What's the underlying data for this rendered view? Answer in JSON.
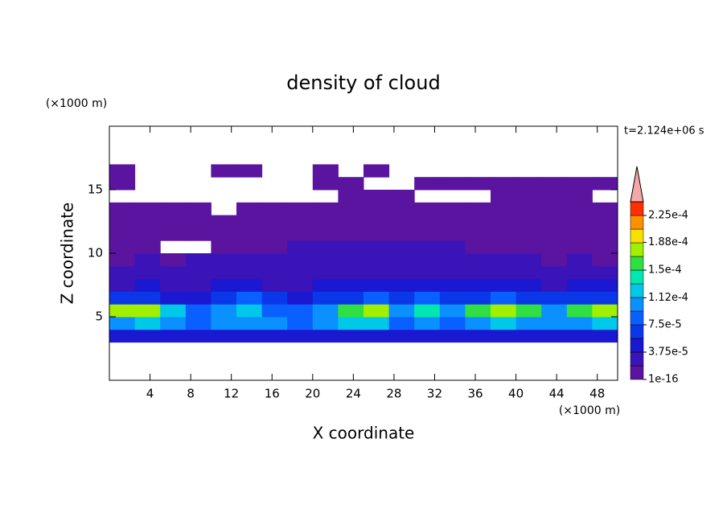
{
  "chart_data": {
    "type": "contour",
    "title": "density of cloud",
    "x_label": "X coordinate",
    "y_label": "Z coordinate",
    "x_unit": "(×1000 m)",
    "y_unit": "(×1000 m)",
    "time_label": "t=2.124e+06 s",
    "xlim": [
      0,
      50
    ],
    "ylim": [
      0,
      20
    ],
    "xticks": [
      4,
      8,
      12,
      16,
      20,
      24,
      28,
      32,
      36,
      40,
      44,
      48
    ],
    "yticks": [
      5,
      10,
      15
    ],
    "levels": [
      1e-16,
      1.875e-05,
      3.75e-05,
      5.625e-05,
      7.5e-05,
      9.375e-05,
      0.0001125,
      0.00013125,
      0.00015,
      0.00016875,
      0.0001875,
      0.00020625,
      0.000225,
      0.00024375
    ],
    "colors": [
      "#5a14a0",
      "#3a14b8",
      "#1a18d0",
      "#0a38e8",
      "#0a60ff",
      "#0a90ff",
      "#00c8e8",
      "#00e8b0",
      "#30e040",
      "#a0f000",
      "#f8e000",
      "#ff9000",
      "#ff3000"
    ],
    "extend_color": "#f4a8a8",
    "colorbar_ticks": [
      {
        "value": 1e-16,
        "label": "1e-16"
      },
      {
        "value": 3.75e-05,
        "label": "3.75e-5"
      },
      {
        "value": 7.5e-05,
        "label": "7.5e-5"
      },
      {
        "value": 0.000112,
        "label": "1.12e-4"
      },
      {
        "value": 0.00015,
        "label": "1.5e-4"
      },
      {
        "value": 0.000188,
        "label": "1.88e-4"
      },
      {
        "value": 0.000225,
        "label": "2.25e-4"
      }
    ],
    "x": [
      1.25,
      3.75,
      6.25,
      8.75,
      11.25,
      13.75,
      16.25,
      18.75,
      21.25,
      23.75,
      26.25,
      28.75,
      31.25,
      33.75,
      36.25,
      38.75,
      41.25,
      43.75,
      46.25,
      48.75
    ],
    "y": [
      3.5,
      4.5,
      5.5,
      6.5,
      7.5,
      8.5,
      9.5,
      10.5,
      11.5,
      12.5,
      13.5,
      14.5,
      15.5,
      16.5
    ],
    "z": [
      [
        4e-05,
        4e-05,
        4e-05,
        4e-05,
        4e-05,
        4e-05,
        4e-05,
        4e-05,
        4e-05,
        4e-05,
        4e-05,
        4e-05,
        4e-05,
        4e-05,
        4e-05,
        4e-05,
        4e-05,
        4e-05,
        4e-05,
        4e-05
      ],
      [
        0.00011,
        0.00012,
        0.0001,
        9e-05,
        0.0001,
        0.00011,
        0.0001,
        9e-05,
        0.0001,
        0.00012,
        0.00012,
        9e-05,
        0.0001,
        9e-05,
        0.00011,
        0.00012,
        0.00011,
        0.0001,
        0.00011,
        0.00012
      ],
      [
        0.00017,
        0.00018,
        0.00013,
        9e-05,
        0.0001,
        0.00012,
        9e-05,
        8e-05,
        0.00011,
        0.00016,
        0.00017,
        0.0001,
        0.00014,
        0.0001,
        0.00015,
        0.00018,
        0.00016,
        0.00011,
        0.00015,
        0.00017
      ],
      [
        6e-05,
        7e-05,
        5e-05,
        5e-05,
        6e-05,
        8e-05,
        6e-05,
        5e-05,
        6e-05,
        7e-05,
        8e-05,
        7e-05,
        9e-05,
        6e-05,
        7e-05,
        8e-05,
        7e-05,
        6e-05,
        7e-05,
        7e-05
      ],
      [
        3e-05,
        4e-05,
        3e-05,
        3e-05,
        4e-05,
        4e-05,
        3e-05,
        3e-05,
        4e-05,
        5e-05,
        4e-05,
        4e-05,
        5e-05,
        4e-05,
        4e-05,
        5e-05,
        4e-05,
        3e-05,
        4e-05,
        4e-05
      ],
      [
        2e-05,
        3e-05,
        2e-05,
        2e-05,
        3e-05,
        3e-05,
        2e-05,
        2e-05,
        3e-05,
        3e-05,
        3e-05,
        3e-05,
        3e-05,
        3e-05,
        3e-05,
        3e-05,
        2e-05,
        2e-05,
        3e-05,
        2e-05
      ],
      [
        1e-05,
        2e-05,
        1e-05,
        2e-05,
        2e-05,
        2e-05,
        2e-05,
        2e-05,
        2e-05,
        2e-05,
        3e-05,
        3e-05,
        3e-05,
        2e-05,
        2e-05,
        2e-05,
        2e-05,
        1e-05,
        2e-05,
        1e-05
      ],
      [
        1e-05,
        1e-05,
        null,
        null,
        1e-05,
        1e-05,
        1e-05,
        2e-05,
        2e-05,
        2e-05,
        2e-05,
        2e-05,
        2e-05,
        2e-05,
        1e-05,
        1e-05,
        1e-05,
        1e-05,
        1e-05,
        1e-05
      ],
      [
        1e-05,
        1e-05,
        1e-05,
        1e-05,
        1e-05,
        1e-05,
        1e-05,
        1e-05,
        1e-05,
        1e-05,
        1e-05,
        1e-05,
        1e-05,
        1e-05,
        1e-05,
        1e-05,
        1e-05,
        1e-05,
        1e-05,
        1e-05
      ],
      [
        1e-05,
        1e-05,
        5e-06,
        5e-06,
        1e-05,
        1e-05,
        1e-05,
        1e-05,
        1e-05,
        1e-05,
        1e-05,
        1e-05,
        1e-05,
        1e-05,
        1e-05,
        1e-05,
        1e-05,
        1e-05,
        1e-05,
        5e-06
      ],
      [
        5e-06,
        5e-06,
        5e-06,
        5e-06,
        null,
        5e-06,
        5e-06,
        5e-06,
        5e-06,
        5e-06,
        5e-06,
        5e-06,
        5e-06,
        5e-06,
        5e-06,
        5e-06,
        5e-06,
        5e-06,
        5e-06,
        5e-06
      ],
      [
        null,
        null,
        null,
        null,
        null,
        null,
        null,
        null,
        null,
        5e-06,
        5e-06,
        5e-06,
        null,
        null,
        null,
        5e-06,
        5e-06,
        5e-06,
        5e-06,
        null
      ],
      [
        5e-06,
        null,
        null,
        null,
        null,
        null,
        null,
        null,
        5e-06,
        5e-06,
        null,
        null,
        5e-06,
        5e-06,
        5e-06,
        5e-06,
        5e-06,
        5e-06,
        5e-06,
        5e-06
      ],
      [
        5e-06,
        null,
        null,
        null,
        5e-06,
        5e-06,
        null,
        null,
        5e-06,
        null,
        5e-06,
        null,
        null,
        null,
        null,
        null,
        null,
        null,
        null,
        null
      ]
    ]
  }
}
